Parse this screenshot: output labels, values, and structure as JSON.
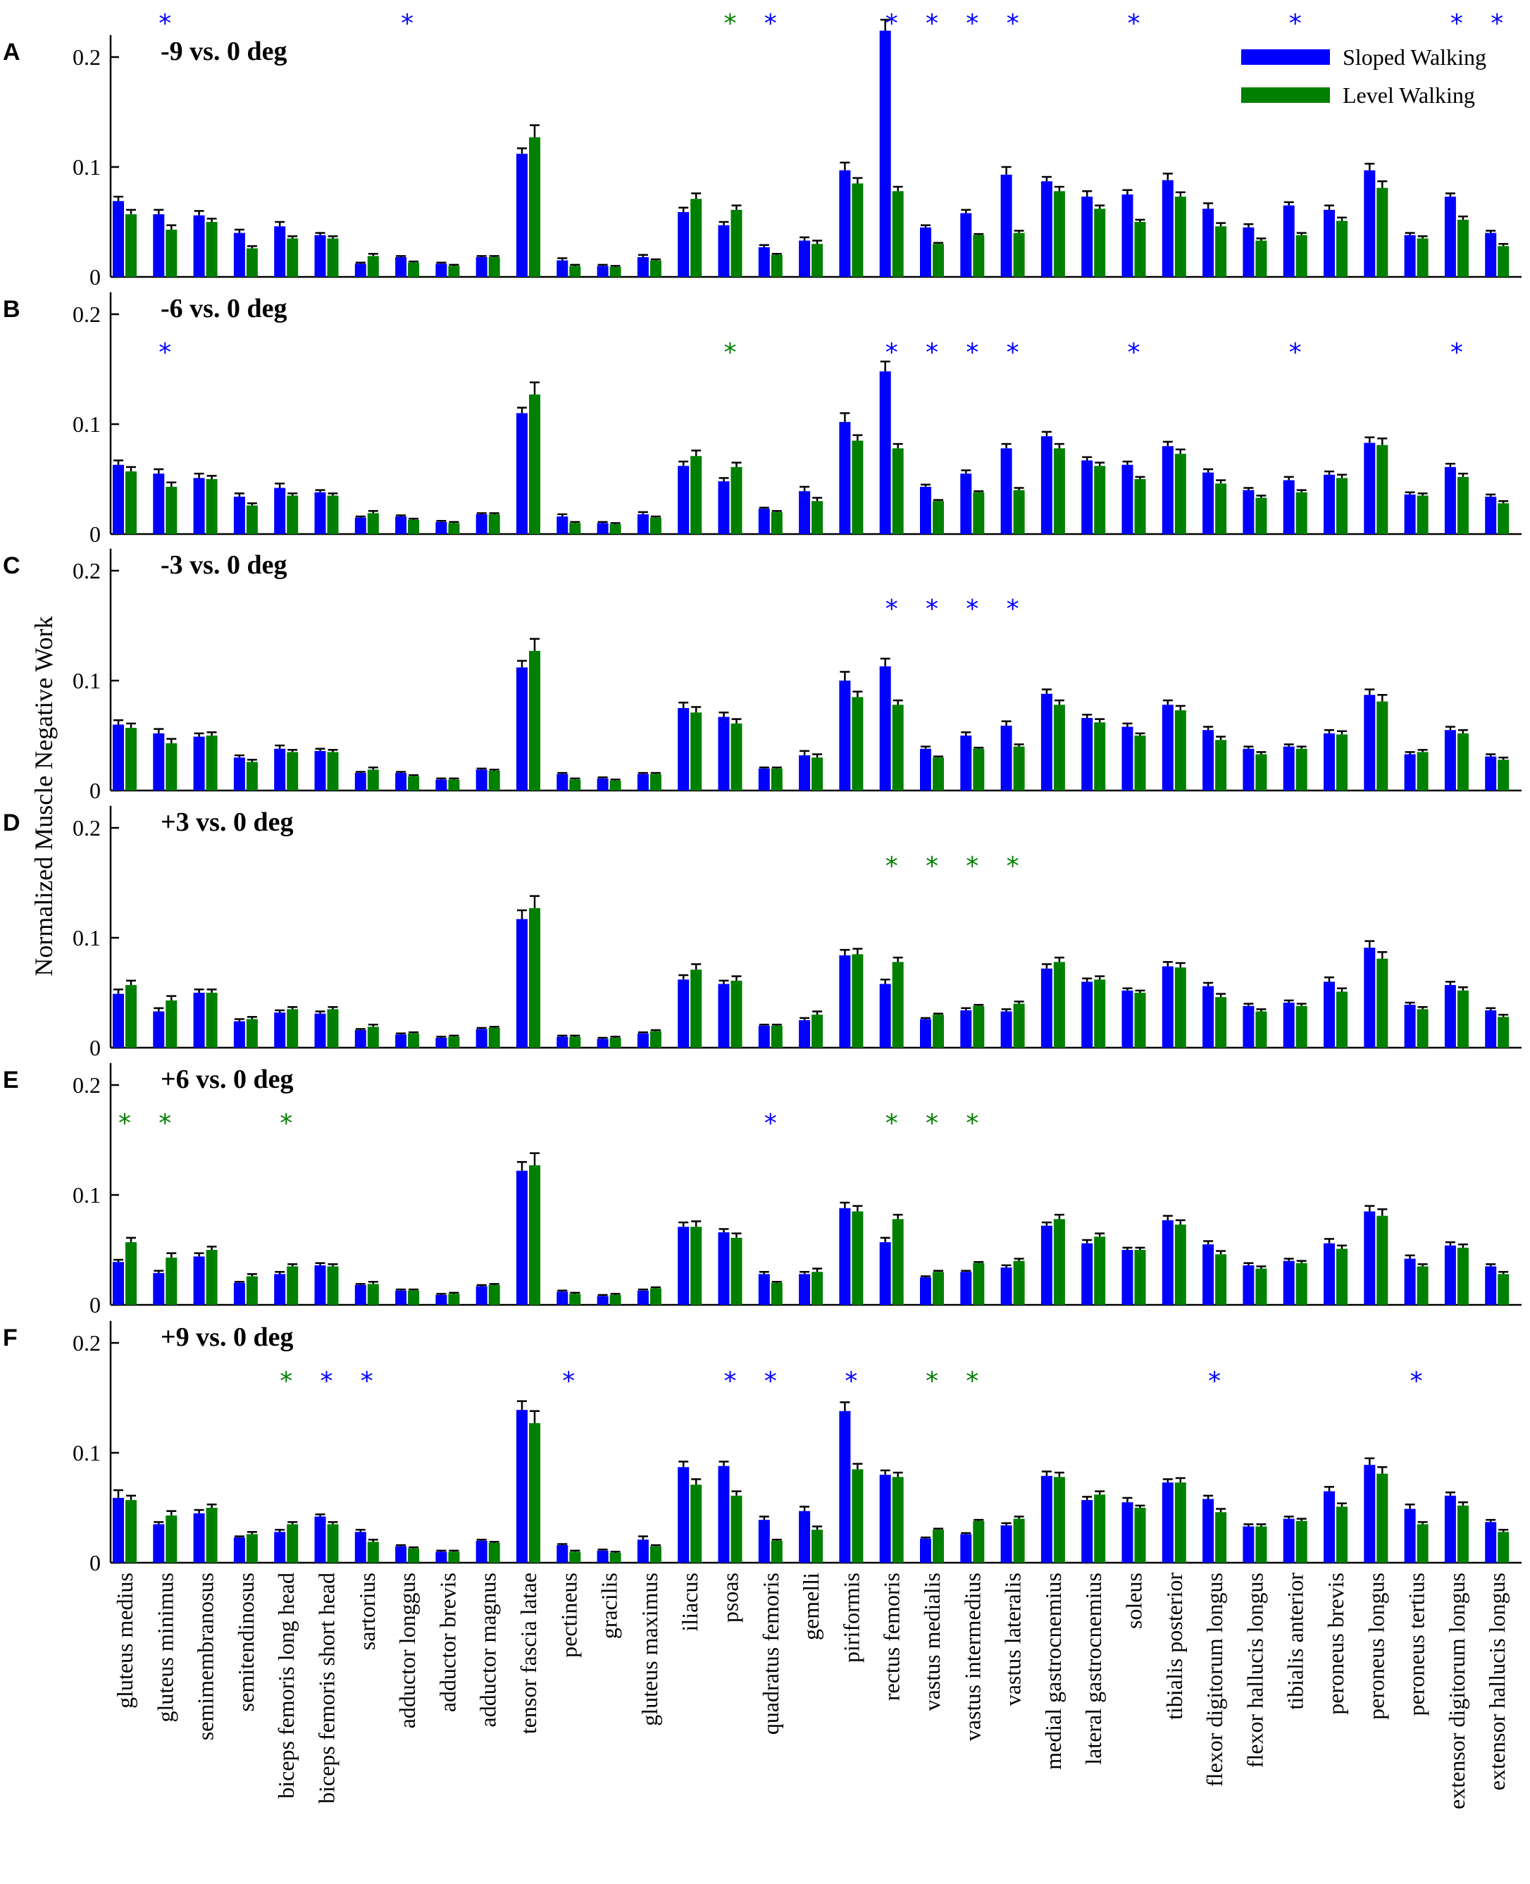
{
  "colors": {
    "sloped": "#0000ff",
    "level": "#008000",
    "axis": "#000000"
  },
  "chart_data": {
    "type": "bar",
    "ylabel": "Normalized Muscle  Negative Work",
    "ylim": [
      0,
      0.22
    ],
    "yticks": [
      0,
      0.1,
      0.2
    ],
    "ytick_labels": [
      "0",
      "0.1",
      "0.2"
    ],
    "legend": {
      "placement": "top-right",
      "entries": [
        "Sloped Walking",
        "Level Walking"
      ]
    },
    "categories": [
      "gluteus medius",
      "gluteus minimus",
      "semimembranosus",
      "semitendinosus",
      "biceps femoris long head",
      "biceps femoris short head",
      "sartorius",
      "adductor longgus",
      "adductor brevis",
      "adductor magnus",
      "tensor fascia latae",
      "pectineus",
      "gracilis",
      "gluteus maximus",
      "iliacus",
      "psoas",
      "quadratus femoris",
      "gemelli",
      "piriformis",
      "rectus femoris",
      "vastus medialis",
      "vastus intermedius",
      "vastus lateralis",
      "medial gastrocnemius",
      "lateral gastrocnemius",
      "soleus",
      "tibialis posterior",
      "flexor digitorum longus",
      "flexor hallucis longus",
      "tibialis anterior",
      "peroneus brevis",
      "peroneus longus",
      "peroneus tertius",
      "extensor digitorum longus",
      "extensor hallucis longus"
    ],
    "level": {
      "name": "Level Walking",
      "values": [
        0.057,
        0.043,
        0.05,
        0.026,
        0.035,
        0.035,
        0.019,
        0.013,
        0.01,
        0.018,
        0.127,
        0.01,
        0.009,
        0.015,
        0.071,
        0.061,
        0.02,
        0.03,
        0.085,
        0.078,
        0.03,
        0.038,
        0.04,
        0.078,
        0.062,
        0.05,
        0.073,
        0.046,
        0.033,
        0.038,
        0.051,
        0.081,
        0.035,
        0.052,
        0.028
      ],
      "errors": [
        0.004,
        0.004,
        0.003,
        0.002,
        0.002,
        0.002,
        0.002,
        0.001,
        0.001,
        0.001,
        0.011,
        0.001,
        0.001,
        0.001,
        0.005,
        0.004,
        0.001,
        0.003,
        0.005,
        0.004,
        0.001,
        0.001,
        0.002,
        0.004,
        0.003,
        0.002,
        0.004,
        0.003,
        0.002,
        0.002,
        0.003,
        0.006,
        0.002,
        0.003,
        0.002
      ]
    },
    "panels": [
      {
        "letter": "A",
        "title": "-9 vs. 0 deg",
        "show_legend": true,
        "sloped": [
          0.069,
          0.057,
          0.056,
          0.04,
          0.046,
          0.038,
          0.012,
          0.018,
          0.012,
          0.018,
          0.112,
          0.015,
          0.01,
          0.018,
          0.059,
          0.047,
          0.027,
          0.033,
          0.097,
          0.224,
          0.045,
          0.058,
          0.093,
          0.087,
          0.073,
          0.075,
          0.088,
          0.062,
          0.045,
          0.065,
          0.061,
          0.097,
          0.038,
          0.073,
          0.04
        ],
        "sloped_err": [
          0.004,
          0.004,
          0.004,
          0.003,
          0.004,
          0.002,
          0.001,
          0.001,
          0.001,
          0.001,
          0.005,
          0.002,
          0.001,
          0.002,
          0.004,
          0.003,
          0.002,
          0.003,
          0.007,
          0.01,
          0.002,
          0.003,
          0.007,
          0.004,
          0.005,
          0.004,
          0.006,
          0.005,
          0.003,
          0.003,
          0.004,
          0.006,
          0.002,
          0.003,
          0.002
        ],
        "stars": [
          {
            "i": 1,
            "c": "blue"
          },
          {
            "i": 7,
            "c": "blue"
          },
          {
            "i": 15,
            "c": "green"
          },
          {
            "i": 16,
            "c": "blue"
          },
          {
            "i": 19,
            "c": "blue"
          },
          {
            "i": 20,
            "c": "blue"
          },
          {
            "i": 21,
            "c": "blue"
          },
          {
            "i": 22,
            "c": "blue"
          },
          {
            "i": 25,
            "c": "blue"
          },
          {
            "i": 29,
            "c": "blue"
          },
          {
            "i": 33,
            "c": "blue"
          },
          {
            "i": 34,
            "c": "blue"
          }
        ]
      },
      {
        "letter": "B",
        "title": "-6 vs. 0 deg",
        "show_legend": false,
        "sloped": [
          0.063,
          0.055,
          0.051,
          0.034,
          0.042,
          0.038,
          0.015,
          0.016,
          0.011,
          0.018,
          0.11,
          0.016,
          0.01,
          0.018,
          0.062,
          0.048,
          0.023,
          0.039,
          0.102,
          0.148,
          0.043,
          0.055,
          0.078,
          0.089,
          0.067,
          0.063,
          0.08,
          0.056,
          0.04,
          0.049,
          0.054,
          0.083,
          0.036,
          0.061,
          0.034
        ],
        "sloped_err": [
          0.004,
          0.004,
          0.004,
          0.003,
          0.004,
          0.002,
          0.001,
          0.001,
          0.001,
          0.001,
          0.005,
          0.002,
          0.001,
          0.002,
          0.004,
          0.003,
          0.001,
          0.004,
          0.008,
          0.009,
          0.002,
          0.003,
          0.004,
          0.004,
          0.003,
          0.003,
          0.004,
          0.003,
          0.002,
          0.003,
          0.003,
          0.005,
          0.002,
          0.003,
          0.002
        ],
        "stars": [
          {
            "i": 1,
            "c": "blue"
          },
          {
            "i": 15,
            "c": "green"
          },
          {
            "i": 19,
            "c": "blue"
          },
          {
            "i": 20,
            "c": "blue"
          },
          {
            "i": 21,
            "c": "blue"
          },
          {
            "i": 22,
            "c": "blue"
          },
          {
            "i": 25,
            "c": "blue"
          },
          {
            "i": 29,
            "c": "blue"
          },
          {
            "i": 33,
            "c": "blue"
          }
        ]
      },
      {
        "letter": "C",
        "title": "-3 vs. 0 deg",
        "show_legend": false,
        "sloped": [
          0.06,
          0.052,
          0.049,
          0.03,
          0.038,
          0.036,
          0.016,
          0.016,
          0.01,
          0.019,
          0.112,
          0.015,
          0.011,
          0.015,
          0.075,
          0.067,
          0.02,
          0.032,
          0.1,
          0.113,
          0.038,
          0.05,
          0.059,
          0.088,
          0.066,
          0.058,
          0.078,
          0.055,
          0.038,
          0.04,
          0.052,
          0.087,
          0.033,
          0.055,
          0.031
        ],
        "sloped_err": [
          0.004,
          0.004,
          0.003,
          0.002,
          0.003,
          0.002,
          0.001,
          0.001,
          0.001,
          0.001,
          0.006,
          0.001,
          0.001,
          0.001,
          0.005,
          0.004,
          0.001,
          0.004,
          0.008,
          0.007,
          0.002,
          0.003,
          0.004,
          0.004,
          0.003,
          0.003,
          0.004,
          0.003,
          0.002,
          0.002,
          0.003,
          0.005,
          0.002,
          0.003,
          0.002
        ],
        "stars": [
          {
            "i": 19,
            "c": "blue"
          },
          {
            "i": 20,
            "c": "blue"
          },
          {
            "i": 21,
            "c": "blue"
          },
          {
            "i": 22,
            "c": "blue"
          }
        ]
      },
      {
        "letter": "D",
        "title": "+3 vs. 0 deg",
        "show_legend": false,
        "sloped": [
          0.049,
          0.033,
          0.05,
          0.024,
          0.032,
          0.031,
          0.016,
          0.012,
          0.009,
          0.017,
          0.117,
          0.01,
          0.008,
          0.013,
          0.062,
          0.058,
          0.02,
          0.025,
          0.084,
          0.058,
          0.026,
          0.034,
          0.033,
          0.072,
          0.06,
          0.052,
          0.074,
          0.056,
          0.038,
          0.041,
          0.06,
          0.091,
          0.039,
          0.057,
          0.034
        ],
        "sloped_err": [
          0.004,
          0.003,
          0.003,
          0.002,
          0.002,
          0.002,
          0.001,
          0.001,
          0.001,
          0.001,
          0.008,
          0.001,
          0.001,
          0.001,
          0.004,
          0.003,
          0.001,
          0.002,
          0.005,
          0.004,
          0.001,
          0.002,
          0.002,
          0.004,
          0.003,
          0.002,
          0.004,
          0.003,
          0.002,
          0.002,
          0.004,
          0.006,
          0.002,
          0.003,
          0.002
        ],
        "stars": [
          {
            "i": 19,
            "c": "green"
          },
          {
            "i": 20,
            "c": "green"
          },
          {
            "i": 21,
            "c": "green"
          },
          {
            "i": 22,
            "c": "green"
          }
        ]
      },
      {
        "letter": "E",
        "title": "+6 vs. 0 deg",
        "show_legend": false,
        "sloped": [
          0.039,
          0.029,
          0.044,
          0.02,
          0.028,
          0.036,
          0.018,
          0.013,
          0.009,
          0.017,
          0.122,
          0.012,
          0.008,
          0.013,
          0.071,
          0.066,
          0.028,
          0.028,
          0.088,
          0.057,
          0.025,
          0.03,
          0.034,
          0.072,
          0.056,
          0.05,
          0.077,
          0.055,
          0.036,
          0.04,
          0.056,
          0.085,
          0.042,
          0.054,
          0.035
        ],
        "sloped_err": [
          0.002,
          0.002,
          0.003,
          0.001,
          0.002,
          0.002,
          0.001,
          0.001,
          0.001,
          0.001,
          0.008,
          0.001,
          0.001,
          0.001,
          0.004,
          0.003,
          0.002,
          0.002,
          0.005,
          0.004,
          0.001,
          0.001,
          0.002,
          0.003,
          0.003,
          0.002,
          0.004,
          0.003,
          0.002,
          0.002,
          0.004,
          0.005,
          0.003,
          0.003,
          0.002
        ],
        "stars": [
          {
            "i": 0,
            "c": "green"
          },
          {
            "i": 1,
            "c": "green"
          },
          {
            "i": 4,
            "c": "green"
          },
          {
            "i": 16,
            "c": "blue"
          },
          {
            "i": 19,
            "c": "green"
          },
          {
            "i": 20,
            "c": "green"
          },
          {
            "i": 21,
            "c": "green"
          }
        ]
      },
      {
        "letter": "F",
        "title": "+9 vs. 0 deg",
        "show_legend": false,
        "sloped": [
          0.059,
          0.035,
          0.045,
          0.023,
          0.028,
          0.042,
          0.028,
          0.015,
          0.01,
          0.02,
          0.139,
          0.016,
          0.011,
          0.021,
          0.087,
          0.088,
          0.039,
          0.047,
          0.138,
          0.08,
          0.022,
          0.026,
          0.034,
          0.079,
          0.057,
          0.055,
          0.073,
          0.058,
          0.033,
          0.04,
          0.065,
          0.089,
          0.049,
          0.061,
          0.037
        ],
        "sloped_err": [
          0.007,
          0.002,
          0.003,
          0.001,
          0.002,
          0.002,
          0.002,
          0.001,
          0.001,
          0.001,
          0.008,
          0.001,
          0.001,
          0.003,
          0.005,
          0.004,
          0.003,
          0.004,
          0.008,
          0.004,
          0.001,
          0.001,
          0.002,
          0.004,
          0.003,
          0.004,
          0.003,
          0.003,
          0.002,
          0.002,
          0.004,
          0.006,
          0.004,
          0.003,
          0.002
        ],
        "stars": [
          {
            "i": 4,
            "c": "green"
          },
          {
            "i": 5,
            "c": "blue"
          },
          {
            "i": 6,
            "c": "blue"
          },
          {
            "i": 11,
            "c": "blue"
          },
          {
            "i": 15,
            "c": "blue"
          },
          {
            "i": 16,
            "c": "blue"
          },
          {
            "i": 18,
            "c": "blue"
          },
          {
            "i": 20,
            "c": "green"
          },
          {
            "i": 21,
            "c": "green"
          },
          {
            "i": 27,
            "c": "blue"
          },
          {
            "i": 32,
            "c": "blue"
          }
        ]
      }
    ]
  }
}
